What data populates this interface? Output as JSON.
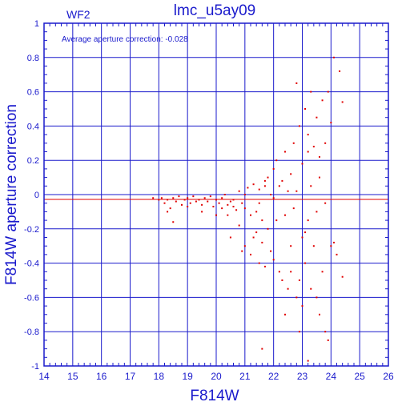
{
  "chart_data": {
    "type": "scatter",
    "title": "lmc_u5ay09",
    "corner_label": "WF2",
    "annotation": "Average aperture correction: -0.028",
    "xlabel": "F814W",
    "ylabel": "F814W aperture correction",
    "xlim": [
      14,
      26
    ],
    "ylim": [
      -1,
      1
    ],
    "xticks": [
      "14",
      "15",
      "16",
      "17",
      "18",
      "19",
      "20",
      "21",
      "22",
      "23",
      "24",
      "25",
      "26"
    ],
    "yticks": [
      "-1",
      "-0.8",
      "-0.6",
      "-0.4",
      "-0.2",
      "0",
      "0.2",
      "0.4",
      "0.6",
      "0.8",
      "1"
    ],
    "grid": true,
    "average_line": -0.028,
    "colors": {
      "axes": "#1a1acc",
      "points": "#e00000"
    },
    "points": [
      [
        17.8,
        -0.02
      ],
      [
        18.0,
        -0.03
      ],
      [
        18.1,
        -0.02
      ],
      [
        18.2,
        -0.05
      ],
      [
        18.3,
        -0.03
      ],
      [
        18.4,
        -0.08
      ],
      [
        18.5,
        -0.02
      ],
      [
        18.6,
        -0.04
      ],
      [
        18.7,
        -0.01
      ],
      [
        18.8,
        -0.06
      ],
      [
        18.9,
        -0.03
      ],
      [
        19.0,
        -0.02
      ],
      [
        19.1,
        -0.05
      ],
      [
        19.2,
        -0.01
      ],
      [
        19.3,
        -0.04
      ],
      [
        19.4,
        -0.03
      ],
      [
        19.5,
        -0.06
      ],
      [
        19.6,
        -0.02
      ],
      [
        19.7,
        -0.04
      ],
      [
        19.8,
        -0.01
      ],
      [
        19.9,
        -0.07
      ],
      [
        20.0,
        -0.03
      ],
      [
        20.1,
        -0.05
      ],
      [
        20.2,
        -0.02
      ],
      [
        20.3,
        0.0
      ],
      [
        20.4,
        -0.06
      ],
      [
        20.5,
        -0.04
      ],
      [
        20.6,
        -0.03
      ],
      [
        20.7,
        -0.09
      ],
      [
        20.8,
        0.02
      ],
      [
        20.9,
        -0.05
      ],
      [
        21.0,
        -0.08
      ],
      [
        21.1,
        0.04
      ],
      [
        21.2,
        -0.12
      ],
      [
        21.3,
        0.06
      ],
      [
        21.4,
        -0.1
      ],
      [
        21.5,
        0.03
      ],
      [
        21.6,
        -0.15
      ],
      [
        21.7,
        0.05
      ],
      [
        21.8,
        -0.2
      ],
      [
        20.5,
        -0.25
      ],
      [
        20.8,
        -0.18
      ],
      [
        21.0,
        -0.3
      ],
      [
        21.2,
        -0.35
      ],
      [
        21.4,
        -0.22
      ],
      [
        21.5,
        -0.4
      ],
      [
        21.6,
        -0.28
      ],
      [
        21.7,
        0.08
      ],
      [
        21.8,
        0.1
      ],
      [
        21.9,
        -0.33
      ],
      [
        22.0,
        0.15
      ],
      [
        22.0,
        -0.38
      ],
      [
        22.1,
        0.2
      ],
      [
        22.2,
        -0.45
      ],
      [
        22.2,
        0.05
      ],
      [
        22.3,
        -0.5
      ],
      [
        22.4,
        0.25
      ],
      [
        22.4,
        -0.12
      ],
      [
        22.5,
        -0.55
      ],
      [
        22.6,
        0.12
      ],
      [
        22.6,
        -0.3
      ],
      [
        22.7,
        0.3
      ],
      [
        22.8,
        -0.6
      ],
      [
        22.8,
        0.02
      ],
      [
        22.9,
        0.4
      ],
      [
        23.0,
        -0.25
      ],
      [
        23.0,
        0.18
      ],
      [
        23.1,
        0.5
      ],
      [
        23.1,
        -0.4
      ],
      [
        23.2,
        0.35
      ],
      [
        23.2,
        -0.15
      ],
      [
        23.3,
        0.6
      ],
      [
        23.3,
        -0.55
      ],
      [
        23.4,
        0.28
      ],
      [
        23.4,
        -0.3
      ],
      [
        23.5,
        0.45
      ],
      [
        23.5,
        -0.1
      ],
      [
        23.6,
        0.1
      ],
      [
        23.6,
        -0.7
      ],
      [
        23.7,
        0.55
      ],
      [
        23.7,
        -0.45
      ],
      [
        23.8,
        0.3
      ],
      [
        23.8,
        -0.05
      ],
      [
        23.9,
        0.6
      ],
      [
        24.0,
        0.42
      ],
      [
        24.0,
        -0.3
      ],
      [
        24.1,
        0.8
      ],
      [
        24.2,
        -0.35
      ],
      [
        24.3,
        0.72
      ],
      [
        24.4,
        0.54
      ],
      [
        22.9,
        -0.8
      ],
      [
        23.0,
        -0.65
      ],
      [
        23.8,
        -0.8
      ],
      [
        23.9,
        -0.85
      ],
      [
        21.6,
        -0.9
      ],
      [
        23.2,
        -0.97
      ],
      [
        22.8,
        0.65
      ],
      [
        23.2,
        0.25
      ],
      [
        22.5,
        0.02
      ],
      [
        22.0,
        -0.02
      ],
      [
        21.5,
        -0.05
      ],
      [
        21.0,
        0.0
      ],
      [
        20.6,
        -0.07
      ],
      [
        20.2,
        -0.08
      ],
      [
        19.0,
        -0.07
      ],
      [
        18.3,
        -0.1
      ],
      [
        18.5,
        -0.16
      ],
      [
        19.5,
        -0.1
      ],
      [
        20.0,
        -0.12
      ],
      [
        21.9,
        0.0
      ],
      [
        22.3,
        0.08
      ],
      [
        22.7,
        -0.08
      ],
      [
        23.3,
        0.05
      ],
      [
        23.6,
        0.22
      ],
      [
        23.1,
        -0.22
      ],
      [
        22.6,
        -0.45
      ],
      [
        22.1,
        -0.15
      ],
      [
        21.3,
        -0.25
      ],
      [
        22.9,
        -0.5
      ],
      [
        23.5,
        -0.6
      ],
      [
        24.4,
        -0.48
      ],
      [
        24.1,
        -0.28
      ],
      [
        22.4,
        -0.7
      ],
      [
        21.7,
        -0.42
      ],
      [
        20.9,
        -0.33
      ],
      [
        20.4,
        -0.12
      ]
    ]
  }
}
